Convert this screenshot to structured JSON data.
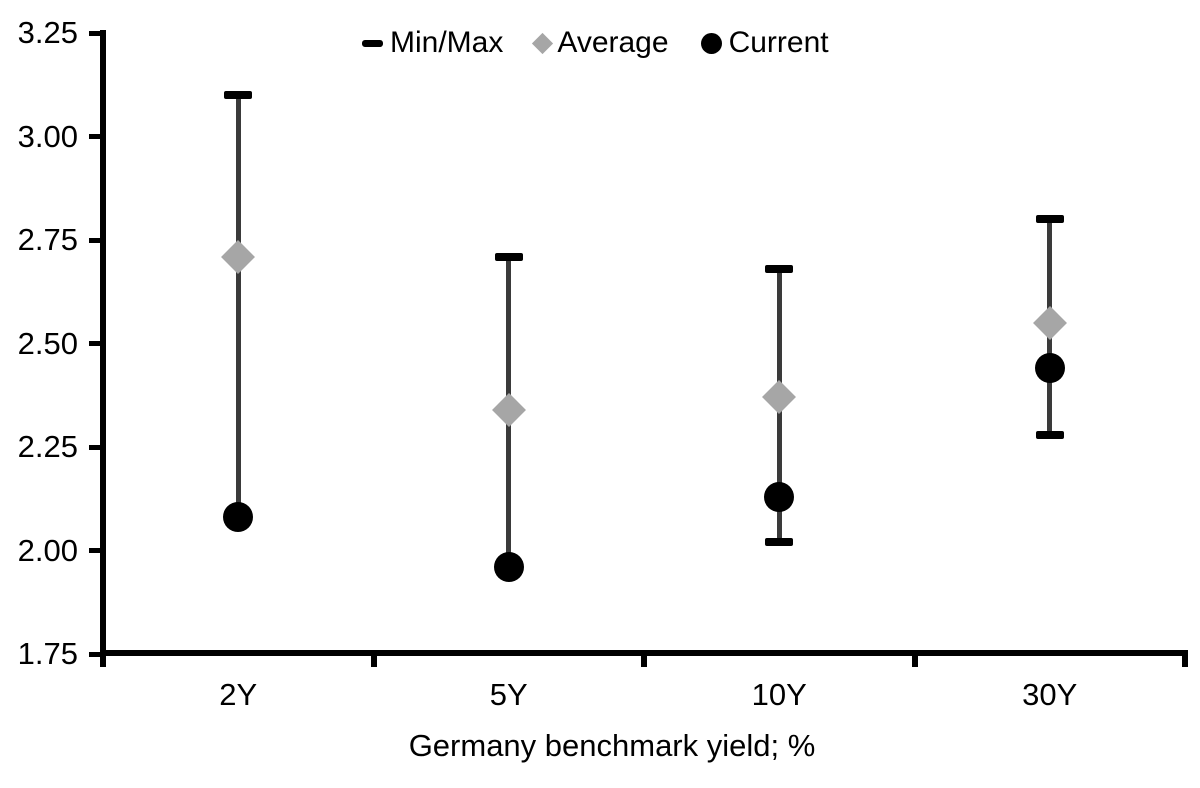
{
  "colors": {
    "background": "#ffffff",
    "axis": "#000000",
    "text": "#000000",
    "minmax_marker": "#000000",
    "average_marker": "#a6a6a6",
    "current_marker": "#000000",
    "whisker_line": "#3a3a3a"
  },
  "legend": {
    "items": [
      {
        "label": "Min/Max",
        "marker": "dash"
      },
      {
        "label": "Average",
        "marker": "diamond"
      },
      {
        "label": "Current",
        "marker": "circle"
      }
    ]
  },
  "chart_data": {
    "type": "scatter",
    "subtype": "min-max-range-with-average-and-current",
    "title": "",
    "xlabel": "Germany benchmark yield; %",
    "ylabel": "",
    "categories": [
      "2Y",
      "5Y",
      "10Y",
      "30Y"
    ],
    "ylim": [
      1.75,
      3.25
    ],
    "ytick_step": 0.25,
    "ytick_labels": [
      "3.25",
      "3.00",
      "2.75",
      "2.50",
      "2.25",
      "2.00",
      "1.75"
    ],
    "grid": false,
    "legend_position": "top-center",
    "series": [
      {
        "name": "Min/Max",
        "role": "range",
        "min": [
          2.08,
          1.96,
          2.02,
          2.28
        ],
        "max": [
          3.1,
          2.71,
          2.68,
          2.8
        ]
      },
      {
        "name": "Average",
        "role": "diamond",
        "values": [
          2.71,
          2.34,
          2.37,
          2.55
        ]
      },
      {
        "name": "Current",
        "role": "circle",
        "values": [
          2.08,
          1.96,
          2.13,
          2.44
        ]
      }
    ]
  }
}
